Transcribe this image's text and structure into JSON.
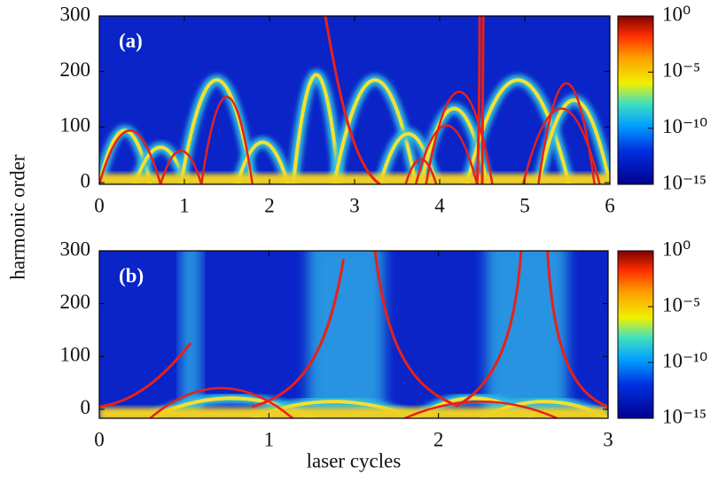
{
  "axis_labels": {
    "x": "laser cycles",
    "y": "harmonic order"
  },
  "chart_data": [
    {
      "type": "heatmap",
      "label": "(a)",
      "xlim": [
        0,
        6
      ],
      "xticks": [
        0,
        1,
        2,
        3,
        4,
        5,
        6
      ],
      "ylim": [
        -3,
        300
      ],
      "yticks": [
        0,
        100,
        200,
        300
      ],
      "colorbar": {
        "scale": "log",
        "lim": [
          1e-15,
          1
        ],
        "ticks": [
          {
            "value": 1,
            "label": "10⁰"
          },
          {
            "value": 1e-05,
            "label": "10⁻⁵"
          },
          {
            "value": 1e-10,
            "label": "10⁻¹⁰"
          },
          {
            "value": 1e-15,
            "label": "10⁻¹⁵"
          }
        ]
      }
    },
    {
      "type": "heatmap",
      "label": "(b)",
      "xlim": [
        0,
        3
      ],
      "xticks": [
        0,
        1,
        2,
        3
      ],
      "ylim": [
        -17,
        300
      ],
      "yticks": [
        0,
        100,
        200,
        300
      ],
      "colorbar": {
        "scale": "log",
        "lim": [
          1e-15,
          1
        ],
        "ticks": [
          {
            "value": 1,
            "label": "10⁰"
          },
          {
            "value": 1e-05,
            "label": "10⁻⁵"
          },
          {
            "value": 1e-10,
            "label": "10⁻¹⁰"
          },
          {
            "value": 1e-15,
            "label": "10⁻¹⁵"
          }
        ]
      }
    }
  ]
}
